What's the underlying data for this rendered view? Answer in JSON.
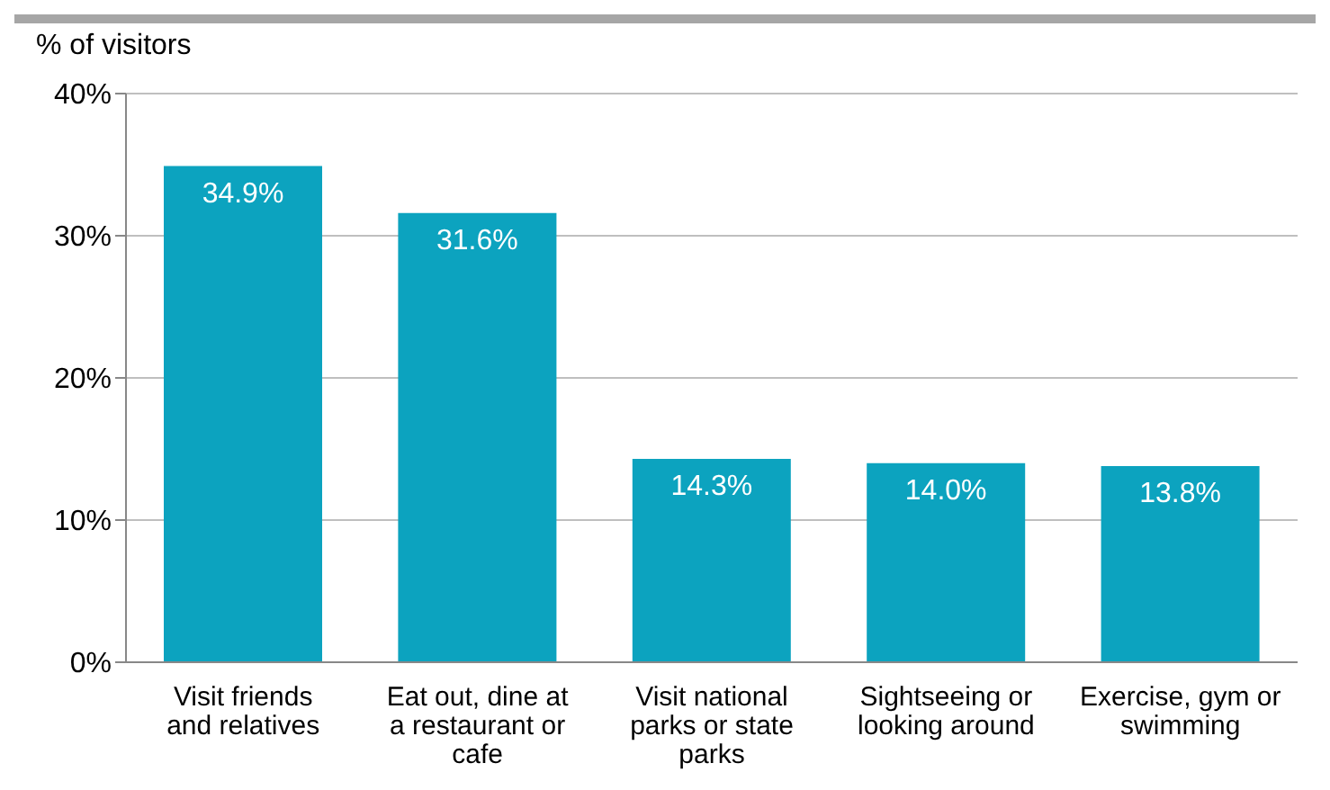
{
  "chart_data": {
    "type": "bar",
    "ylabel": "% of visitors",
    "categories": [
      "Visit friends and relatives",
      "Eat out, dine at a restaurant or cafe",
      "Visit national parks or state parks",
      "Sightseeing or looking around",
      "Exercise, gym or swimming"
    ],
    "values": [
      34.9,
      31.6,
      14.3,
      14.0,
      13.8
    ],
    "value_labels": [
      "34.9%",
      "31.6%",
      "14.3%",
      "14.0%",
      "13.8%"
    ],
    "color": "#0ca3bf",
    "ylim": [
      0,
      40
    ],
    "yticks": [
      {
        "value": 0,
        "label": "0%"
      },
      {
        "value": 10,
        "label": "10%"
      },
      {
        "value": 20,
        "label": "20%"
      },
      {
        "value": 30,
        "label": "30%"
      },
      {
        "value": 40,
        "label": "40%"
      }
    ],
    "grid": "y"
  }
}
